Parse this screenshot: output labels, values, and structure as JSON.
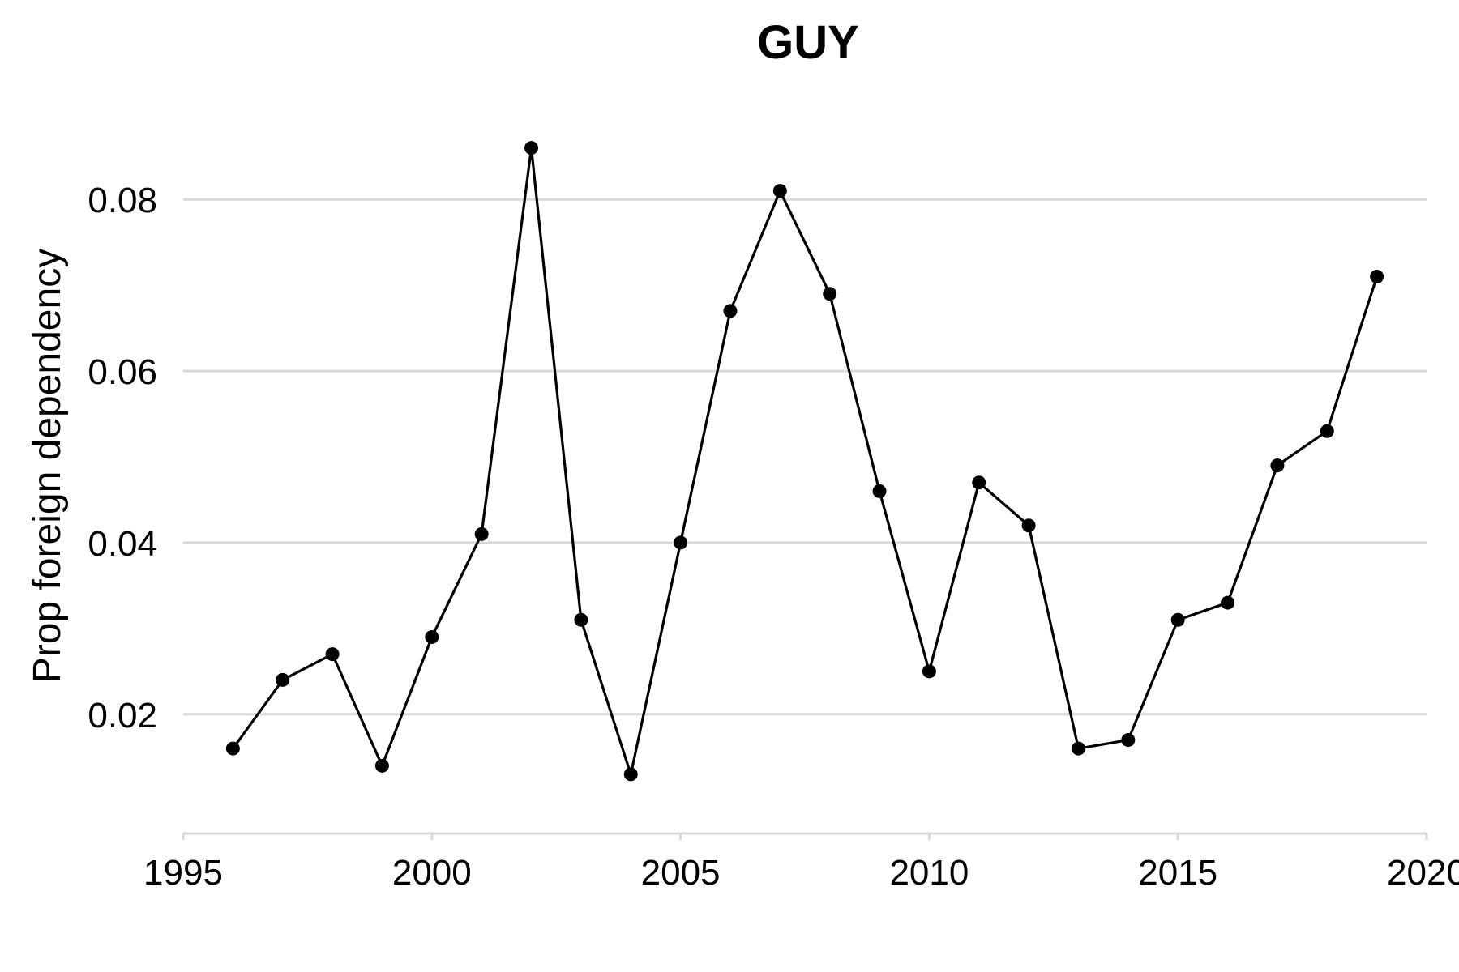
{
  "chart_data": {
    "type": "line",
    "title": "GUY",
    "xlabel": "",
    "ylabel": "Prop foreign dependency",
    "xlim": [
      1995,
      2020
    ],
    "ylim": [
      0.0095,
      0.0905
    ],
    "grid": true,
    "legend": "none",
    "x_ticks": [
      1995,
      2000,
      2005,
      2010,
      2015,
      2020
    ],
    "y_ticks": [
      0.02,
      0.04,
      0.06,
      0.08
    ],
    "y_tick_labels": [
      "0.02",
      "0.04",
      "0.06",
      "0.08"
    ],
    "x_tick_labels": [
      "1995",
      "2000",
      "2005",
      "2010",
      "2015",
      "2020"
    ],
    "series": [
      {
        "x": [
          1996,
          1997,
          1998,
          1999,
          2000,
          2001,
          2002,
          2003,
          2004,
          2005,
          2006,
          2007,
          2008,
          2009,
          2010,
          2011,
          2012,
          2013,
          2014,
          2015,
          2016,
          2017,
          2018,
          2019
        ],
        "y": [
          0.016,
          0.024,
          0.027,
          0.014,
          0.029,
          0.041,
          0.086,
          0.031,
          0.013,
          0.04,
          0.067,
          0.081,
          0.069,
          0.046,
          0.025,
          0.047,
          0.042,
          0.016,
          0.017,
          0.031,
          0.033,
          0.049,
          0.053,
          0.071
        ]
      }
    ],
    "colors": {
      "line": "#000000",
      "points": "#000000",
      "grid": "#d9d9d9",
      "axis": "#d9d9d9"
    }
  }
}
